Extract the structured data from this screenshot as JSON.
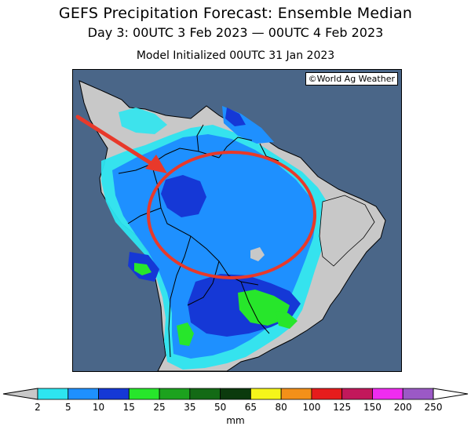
{
  "header": {
    "title": "GEFS Precipitation Forecast: Ensemble Median",
    "period": "Day 3: 00UTC 3 Feb 2023 — 00UTC 4 Feb 2023",
    "initialized": "Model Initialized 00UTC 31 Jan 2023"
  },
  "map": {
    "credit": "©World Ag Weather",
    "ocean_color": "#4a6688",
    "land_color": "#c8c8c8",
    "annotations": {
      "arrow_color": "#e8392a",
      "ellipse_color": "#e8392a"
    }
  },
  "legend": {
    "units": "mm",
    "bins": [
      {
        "from": "2",
        "to": "5",
        "color": "#2de5f0"
      },
      {
        "from": "5",
        "to": "10",
        "color": "#1e90ff"
      },
      {
        "from": "10",
        "to": "15",
        "color": "#1538d6"
      },
      {
        "from": "15",
        "to": "25",
        "color": "#27e62b"
      },
      {
        "from": "25",
        "to": "35",
        "color": "#1ca21e"
      },
      {
        "from": "35",
        "to": "50",
        "color": "#136a15"
      },
      {
        "from": "50",
        "to": "65",
        "color": "#0b3a0d"
      },
      {
        "from": "65",
        "to": "80",
        "color": "#f5f51a"
      },
      {
        "from": "80",
        "to": "100",
        "color": "#f39019"
      },
      {
        "from": "100",
        "to": "125",
        "color": "#e61c1c"
      },
      {
        "from": "125",
        "to": "150",
        "color": "#c2185b"
      },
      {
        "from": "150",
        "to": "200",
        "color": "#ef2cf0"
      },
      {
        "from": "200",
        "to": "250",
        "color": "#9b59c6"
      }
    ],
    "tick_labels": [
      "2",
      "5",
      "10",
      "15",
      "25",
      "35",
      "50",
      "65",
      "80",
      "100",
      "125",
      "150",
      "200",
      "250"
    ],
    "under_color": "#c8c8c8",
    "over_color": "#ffffff"
  }
}
